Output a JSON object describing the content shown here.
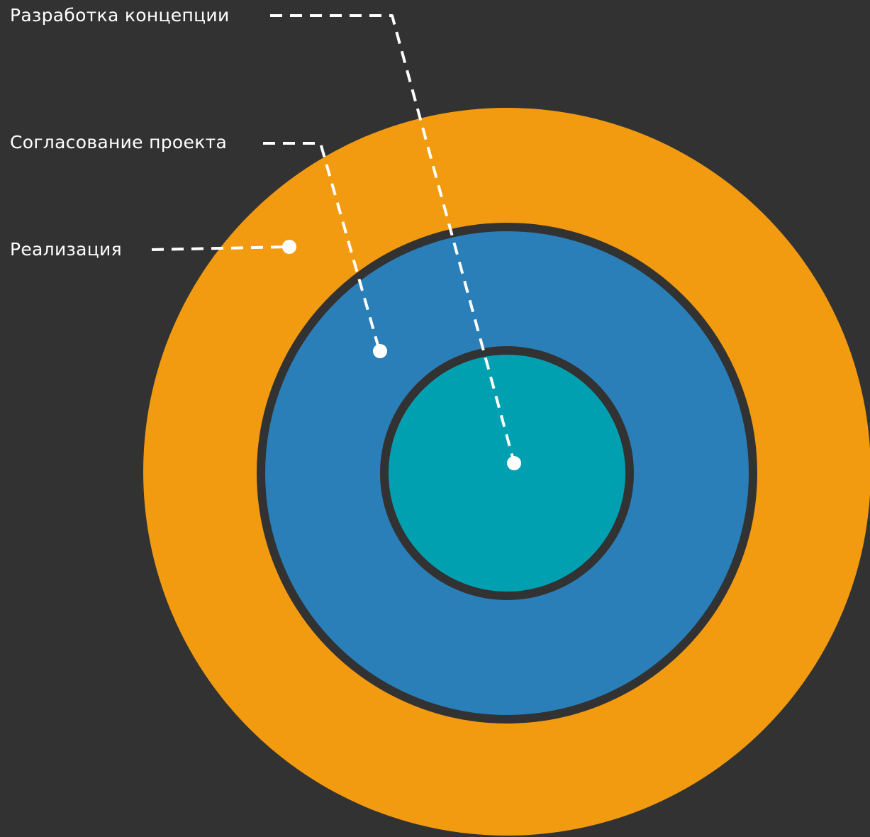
{
  "background_color": "#323232",
  "ring_border_color": "#323232",
  "leader_color": "#ffffff",
  "layers": [
    {
      "id": "realization",
      "label": "Реализация",
      "color": "#F29B11"
    },
    {
      "id": "approval",
      "label": "Согласование проекта",
      "color": "#2A7FB8"
    },
    {
      "id": "concept",
      "label": "Разработка концепции",
      "color": "#00A0B0"
    }
  ]
}
